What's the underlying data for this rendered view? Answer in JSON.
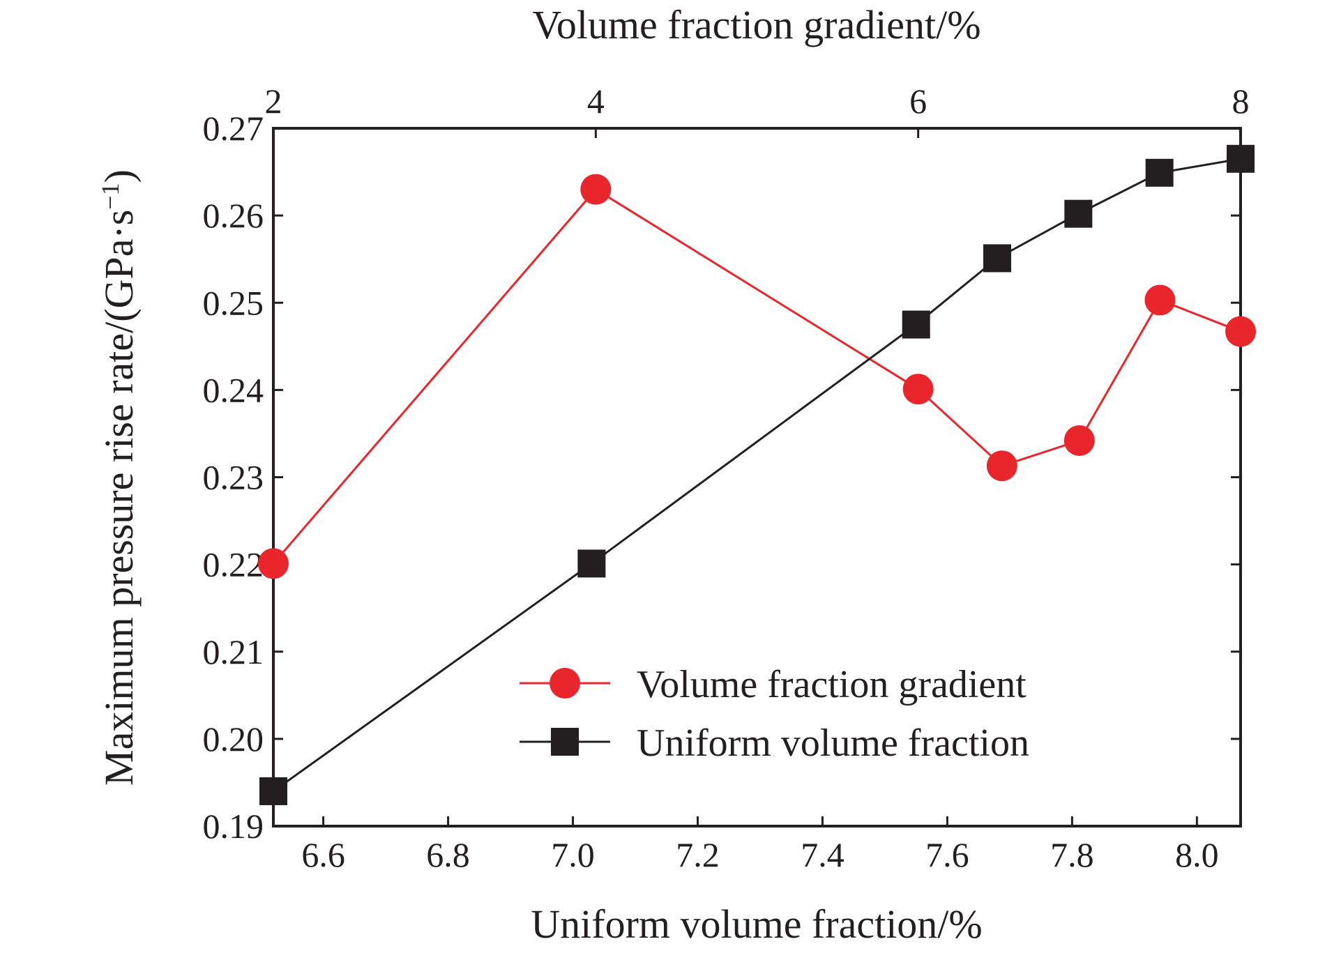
{
  "chart_data": {
    "type": "line",
    "top_axis": {
      "label": "Volume fraction gradient/%",
      "range": [
        2,
        8
      ],
      "ticks": [
        2,
        4,
        6,
        8
      ],
      "tick_labels": [
        "2",
        "4",
        "6",
        "8"
      ]
    },
    "bottom_axis": {
      "label": "Uniform volume fraction/%",
      "range": [
        6.52,
        8.07
      ],
      "ticks": [
        6.6,
        6.8,
        7.0,
        7.2,
        7.4,
        7.6,
        7.8,
        8.0
      ],
      "tick_labels": [
        "6.6",
        "6.8",
        "7.0",
        "7.2",
        "7.4",
        "7.6",
        "7.8",
        "8.0"
      ]
    },
    "y_axis": {
      "label": "Maximum pressure rise rate/(GPa·s",
      "label_superscript": "−1",
      "label_suffix": ")",
      "range": [
        0.19,
        0.27
      ],
      "ticks": [
        0.19,
        0.2,
        0.21,
        0.22,
        0.23,
        0.24,
        0.25,
        0.26,
        0.27
      ],
      "tick_labels": [
        "0.19",
        "0.20",
        "0.21",
        "0.22",
        "0.23",
        "0.24",
        "0.25",
        "0.26",
        "0.27"
      ]
    },
    "series": [
      {
        "name": "Volume fraction gradient",
        "axis": "top",
        "marker": "circle",
        "color": "#e8262c",
        "line_color": "#e8262c",
        "x": [
          2,
          4,
          6,
          6.52,
          7,
          7.5,
          8
        ],
        "y": [
          0.2201,
          0.263,
          0.2401,
          0.2313,
          0.2342,
          0.2503,
          0.2467
        ]
      },
      {
        "name": "Uniform volume fraction",
        "axis": "bottom",
        "marker": "square",
        "color": "#231f20",
        "line_color": "#231f20",
        "x": [
          6.52,
          7.03,
          7.55,
          7.68,
          7.81,
          7.94,
          8.07
        ],
        "y": [
          0.194,
          0.2201,
          0.2475,
          0.2551,
          0.2602,
          0.2649,
          0.2665
        ]
      }
    ],
    "legend_position": "bottom-right",
    "grid": false
  }
}
